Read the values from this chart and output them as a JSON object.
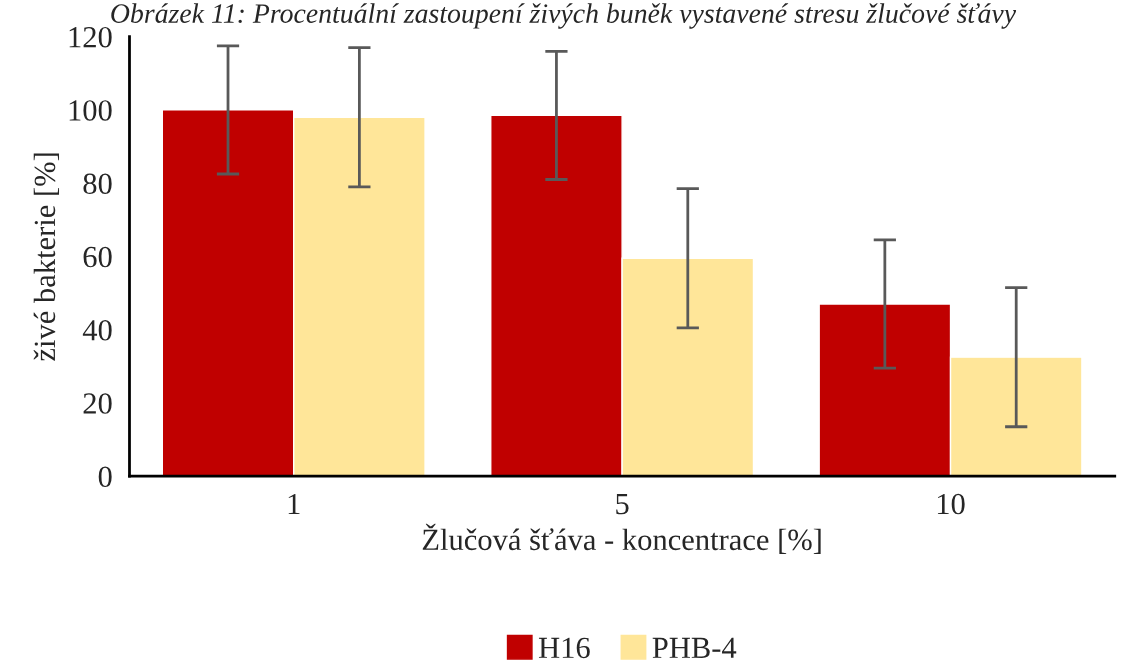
{
  "chart_data": {
    "type": "bar",
    "title": "Obrázek 11: Procentuální zastoupení živých buněk vystavené stresu žlučové šťávy",
    "xlabel": "Žlučová šťáva - koncentrace [%]",
    "ylabel": "živé bakterie [%]",
    "categories": [
      "1",
      "5",
      "10"
    ],
    "series": [
      {
        "name": "H16",
        "color": "#c00000",
        "values": [
          100,
          98.5,
          47
        ],
        "errors": [
          17.5,
          17.5,
          17.5
        ]
      },
      {
        "name": "PHB-4",
        "color": "#ffe699",
        "values": [
          98,
          59.5,
          32.5
        ],
        "errors": [
          19,
          19,
          19
        ]
      }
    ],
    "ylim": [
      0,
      120
    ],
    "yticks": [
      0,
      20,
      40,
      60,
      80,
      100,
      120
    ],
    "grid": false,
    "legend": "bottom"
  }
}
